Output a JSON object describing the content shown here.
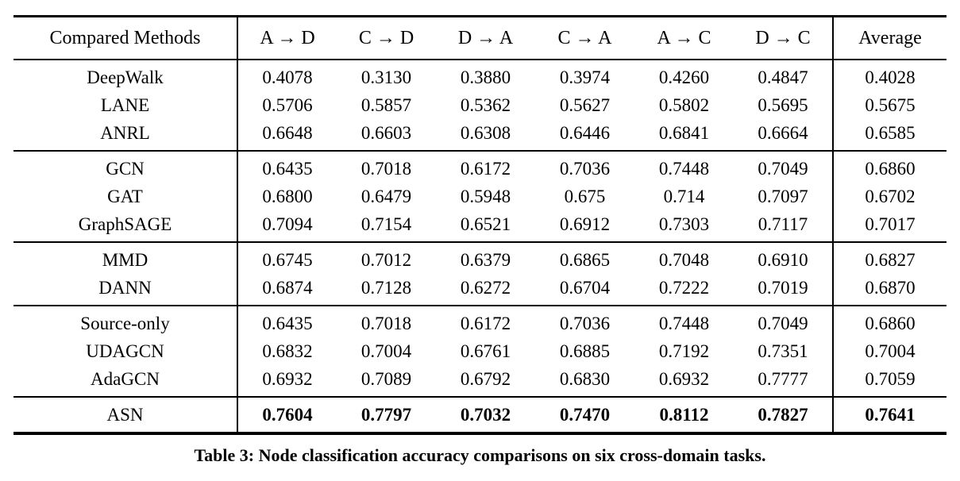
{
  "caption": "Table 3: Node classification accuracy comparisons on six cross-domain tasks.",
  "table": {
    "header": [
      "Compared Methods",
      "A → D",
      "C → D",
      "D → A",
      "C → A",
      "A → C",
      "D → C",
      "Average"
    ],
    "groups": [
      [
        {
          "method": "DeepWalk",
          "values": [
            "0.4078",
            "0.3130",
            "0.3880",
            "0.3974",
            "0.4260",
            "0.4847",
            "0.4028"
          ],
          "bold_values": false
        },
        {
          "method": "LANE",
          "values": [
            "0.5706",
            "0.5857",
            "0.5362",
            "0.5627",
            "0.5802",
            "0.5695",
            "0.5675"
          ],
          "bold_values": false
        },
        {
          "method": "ANRL",
          "values": [
            "0.6648",
            "0.6603",
            "0.6308",
            "0.6446",
            "0.6841",
            "0.6664",
            "0.6585"
          ],
          "bold_values": false
        }
      ],
      [
        {
          "method": "GCN",
          "values": [
            "0.6435",
            "0.7018",
            "0.6172",
            "0.7036",
            "0.7448",
            "0.7049",
            "0.6860"
          ],
          "bold_values": false
        },
        {
          "method": "GAT",
          "values": [
            "0.6800",
            "0.6479",
            "0.5948",
            "0.675",
            "0.714",
            "0.7097",
            "0.6702"
          ],
          "bold_values": false
        },
        {
          "method": "GraphSAGE",
          "values": [
            "0.7094",
            "0.7154",
            "0.6521",
            "0.6912",
            "0.7303",
            "0.7117",
            "0.7017"
          ],
          "bold_values": false
        }
      ],
      [
        {
          "method": "MMD",
          "values": [
            "0.6745",
            "0.7012",
            "0.6379",
            "0.6865",
            "0.7048",
            "0.6910",
            "0.6827"
          ],
          "bold_values": false
        },
        {
          "method": "DANN",
          "values": [
            "0.6874",
            "0.7128",
            "0.6272",
            "0.6704",
            "0.7222",
            "0.7019",
            "0.6870"
          ],
          "bold_values": false
        }
      ],
      [
        {
          "method": "Source-only",
          "values": [
            "0.6435",
            "0.7018",
            "0.6172",
            "0.7036",
            "0.7448",
            "0.7049",
            "0.6860"
          ],
          "bold_values": false
        },
        {
          "method": "UDAGCN",
          "values": [
            "0.6832",
            "0.7004",
            "0.6761",
            "0.6885",
            "0.7192",
            "0.7351",
            "0.7004"
          ],
          "bold_values": false
        },
        {
          "method": "AdaGCN",
          "values": [
            "0.6932",
            "0.7089",
            "0.6792",
            "0.6830",
            "0.6932",
            "0.7777",
            "0.7059"
          ],
          "bold_values": false
        }
      ],
      [
        {
          "method": "ASN",
          "values": [
            "0.7604",
            "0.7797",
            "0.7032",
            "0.7470",
            "0.8112",
            "0.7827",
            "0.7641"
          ],
          "bold_values": true
        }
      ]
    ]
  },
  "colors": {
    "text": "#000000",
    "background": "#ffffff",
    "rule": "#000000"
  }
}
